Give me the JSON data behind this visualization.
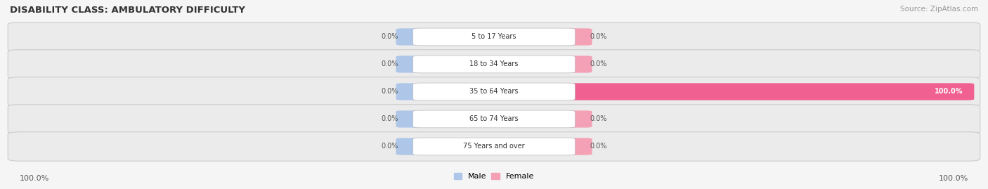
{
  "title": "DISABILITY CLASS: AMBULATORY DIFFICULTY",
  "source": "Source: ZipAtlas.com",
  "categories": [
    "5 to 17 Years",
    "18 to 34 Years",
    "35 to 64 Years",
    "65 to 74 Years",
    "75 Years and over"
  ],
  "male_values": [
    0.0,
    0.0,
    0.0,
    0.0,
    0.0
  ],
  "female_values": [
    0.0,
    0.0,
    100.0,
    0.0,
    0.0
  ],
  "male_color": "#aec6e8",
  "female_color": "#f4a0b5",
  "female_full_color": "#f06090",
  "row_bg_color": "#ebebeb",
  "label_color": "#555555",
  "title_color": "#333333",
  "male_label": "Male",
  "female_label": "Female",
  "left_100_label": "100.0%",
  "right_100_label": "100.0%",
  "max_val": 100.0,
  "stub_pct": 4.5
}
